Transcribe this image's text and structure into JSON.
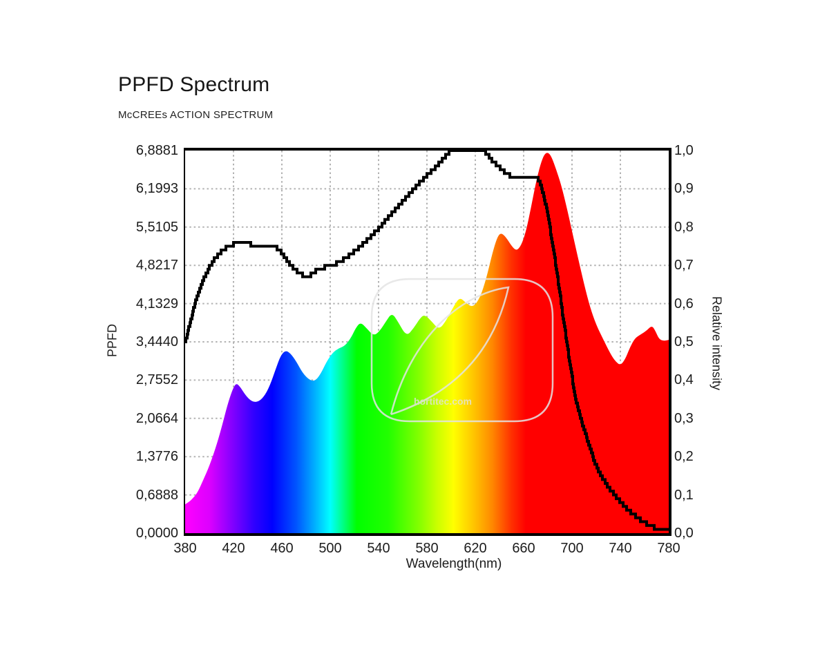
{
  "chart_data": {
    "type": "area",
    "title": "PPFD Spectrum",
    "subtitle": "McCREEs ACTION SPECTRUM",
    "xlabel": "Wavelength(nm)",
    "ylabel_left": "PPFD",
    "ylabel_right": "Relative intensity",
    "watermark": "hortitec.com",
    "grid": true,
    "x_range": [
      380,
      780
    ],
    "x_ticks": [
      380,
      420,
      460,
      500,
      540,
      580,
      620,
      660,
      700,
      740,
      780
    ],
    "x_tick_labels": [
      "380",
      "420",
      "460",
      "500",
      "540",
      "580",
      "620",
      "660",
      "700",
      "740",
      "780"
    ],
    "y_left_range": [
      0,
      6.8881
    ],
    "y_left_tick_labels": [
      "6,8881",
      "6,1993",
      "5,5105",
      "4,8217",
      "4,1329",
      "3,4440",
      "2,7552",
      "2,0664",
      "1,3776",
      "0,6888",
      "0,0000"
    ],
    "y_right_range": [
      0,
      1.0
    ],
    "y_right_tick_labels": [
      "1,0",
      "0,9",
      "0,8",
      "0,7",
      "0,6",
      "0,5",
      "0,4",
      "0,3",
      "0,2",
      "0,1",
      "0,0"
    ],
    "colors": {
      "line": "#000000",
      "grid": "#b2b2b2",
      "frame": "#000000",
      "watermark": "#e4e4e4"
    },
    "spectrum_gradient": [
      {
        "wavelength": 380,
        "color": "#ff00ff"
      },
      {
        "wavelength": 400,
        "color": "#dd00ff"
      },
      {
        "wavelength": 418,
        "color": "#8800ff"
      },
      {
        "wavelength": 437,
        "color": "#3000ff"
      },
      {
        "wavelength": 452,
        "color": "#0000ff"
      },
      {
        "wavelength": 472,
        "color": "#0055ff"
      },
      {
        "wavelength": 488,
        "color": "#00b4ff"
      },
      {
        "wavelength": 500,
        "color": "#00ffff"
      },
      {
        "wavelength": 522,
        "color": "#00ff00"
      },
      {
        "wavelength": 548,
        "color": "#22ff00"
      },
      {
        "wavelength": 572,
        "color": "#7dff00"
      },
      {
        "wavelength": 588,
        "color": "#c8ff00"
      },
      {
        "wavelength": 602,
        "color": "#ffff00"
      },
      {
        "wavelength": 620,
        "color": "#ffc000"
      },
      {
        "wavelength": 634,
        "color": "#ff8800"
      },
      {
        "wavelength": 650,
        "color": "#ff3000"
      },
      {
        "wavelength": 662,
        "color": "#ff0000"
      },
      {
        "wavelength": 780,
        "color": "#ff0000"
      }
    ],
    "series": [
      {
        "name": "PPFD spectrum",
        "render": "area",
        "axis": "left",
        "points": [
          [
            380,
            0.52
          ],
          [
            383,
            0.56
          ],
          [
            386,
            0.62
          ],
          [
            390,
            0.72
          ],
          [
            395,
            0.96
          ],
          [
            400,
            1.21
          ],
          [
            405,
            1.52
          ],
          [
            410,
            1.89
          ],
          [
            415,
            2.31
          ],
          [
            419,
            2.58
          ],
          [
            422,
            2.7
          ],
          [
            425,
            2.65
          ],
          [
            430,
            2.48
          ],
          [
            435,
            2.37
          ],
          [
            440,
            2.36
          ],
          [
            445,
            2.45
          ],
          [
            450,
            2.65
          ],
          [
            455,
            2.96
          ],
          [
            459,
            3.2
          ],
          [
            463,
            3.29
          ],
          [
            467,
            3.24
          ],
          [
            472,
            3.09
          ],
          [
            477,
            2.89
          ],
          [
            482,
            2.77
          ],
          [
            487,
            2.73
          ],
          [
            492,
            2.86
          ],
          [
            497,
            3.09
          ],
          [
            502,
            3.25
          ],
          [
            507,
            3.33
          ],
          [
            512,
            3.37
          ],
          [
            517,
            3.51
          ],
          [
            521,
            3.69
          ],
          [
            525,
            3.8
          ],
          [
            530,
            3.69
          ],
          [
            536,
            3.55
          ],
          [
            541,
            3.64
          ],
          [
            546,
            3.81
          ],
          [
            551,
            3.97
          ],
          [
            556,
            3.81
          ],
          [
            563,
            3.54
          ],
          [
            569,
            3.69
          ],
          [
            574,
            3.86
          ],
          [
            578,
            3.94
          ],
          [
            584,
            3.81
          ],
          [
            590,
            3.66
          ],
          [
            596,
            3.83
          ],
          [
            602,
            4.08
          ],
          [
            607,
            4.25
          ],
          [
            612,
            4.15
          ],
          [
            618,
            4.06
          ],
          [
            624,
            4.24
          ],
          [
            629,
            4.58
          ],
          [
            634,
            5.03
          ],
          [
            638,
            5.32
          ],
          [
            641,
            5.41
          ],
          [
            645,
            5.34
          ],
          [
            650,
            5.17
          ],
          [
            654,
            5.08
          ],
          [
            658,
            5.18
          ],
          [
            662,
            5.44
          ],
          [
            666,
            5.85
          ],
          [
            670,
            6.3
          ],
          [
            674,
            6.65
          ],
          [
            677,
            6.82
          ],
          [
            680,
            6.86
          ],
          [
            683,
            6.78
          ],
          [
            687,
            6.54
          ],
          [
            691,
            6.27
          ],
          [
            695,
            5.92
          ],
          [
            700,
            5.44
          ],
          [
            705,
            4.95
          ],
          [
            710,
            4.48
          ],
          [
            715,
            4.06
          ],
          [
            720,
            3.75
          ],
          [
            726,
            3.48
          ],
          [
            732,
            3.22
          ],
          [
            736,
            3.09
          ],
          [
            740,
            3.02
          ],
          [
            744,
            3.13
          ],
          [
            748,
            3.35
          ],
          [
            752,
            3.51
          ],
          [
            757,
            3.58
          ],
          [
            762,
            3.65
          ],
          [
            766,
            3.74
          ],
          [
            769,
            3.64
          ],
          [
            772,
            3.49
          ],
          [
            776,
            3.46
          ],
          [
            780,
            3.48
          ]
        ]
      },
      {
        "name": "McCrees action spectrum",
        "render": "step-line",
        "axis": "right",
        "points": [
          [
            380,
            0.5
          ],
          [
            384,
            0.55
          ],
          [
            388,
            0.6
          ],
          [
            392,
            0.64
          ],
          [
            396,
            0.67
          ],
          [
            400,
            0.695
          ],
          [
            404,
            0.715
          ],
          [
            408,
            0.73
          ],
          [
            412,
            0.742
          ],
          [
            416,
            0.75
          ],
          [
            420,
            0.755
          ],
          [
            425,
            0.757
          ],
          [
            433,
            0.757
          ],
          [
            437,
            0.75
          ],
          [
            455,
            0.748
          ],
          [
            459,
            0.735
          ],
          [
            463,
            0.718
          ],
          [
            467,
            0.7
          ],
          [
            471,
            0.688
          ],
          [
            475,
            0.678
          ],
          [
            479,
            0.672
          ],
          [
            484,
            0.675
          ],
          [
            488,
            0.685
          ],
          [
            492,
            0.692
          ],
          [
            497,
            0.697
          ],
          [
            503,
            0.702
          ],
          [
            508,
            0.71
          ],
          [
            513,
            0.72
          ],
          [
            517,
            0.73
          ],
          [
            523,
            0.745
          ],
          [
            529,
            0.762
          ],
          [
            535,
            0.78
          ],
          [
            541,
            0.8
          ],
          [
            547,
            0.822
          ],
          [
            553,
            0.843
          ],
          [
            559,
            0.864
          ],
          [
            565,
            0.885
          ],
          [
            571,
            0.906
          ],
          [
            577,
            0.926
          ],
          [
            583,
            0.945
          ],
          [
            589,
            0.963
          ],
          [
            594,
            0.98
          ],
          [
            598,
            0.995
          ],
          [
            601,
            1.0
          ],
          [
            627,
            1.0
          ],
          [
            630,
            0.99
          ],
          [
            633,
            0.977
          ],
          [
            637,
            0.965
          ],
          [
            641,
            0.952
          ],
          [
            645,
            0.941
          ],
          [
            649,
            0.933
          ],
          [
            653,
            0.928
          ],
          [
            671,
            0.928
          ],
          [
            674,
            0.91
          ],
          [
            677,
            0.875
          ],
          [
            680,
            0.83
          ],
          [
            683,
            0.77
          ],
          [
            686,
            0.71
          ],
          [
            689,
            0.645
          ],
          [
            692,
            0.575
          ],
          [
            695,
            0.51
          ],
          [
            698,
            0.445
          ],
          [
            701,
            0.385
          ],
          [
            704,
            0.335
          ],
          [
            708,
            0.29
          ],
          [
            712,
            0.25
          ],
          [
            716,
            0.21
          ],
          [
            720,
            0.175
          ],
          [
            725,
            0.145
          ],
          [
            730,
            0.12
          ],
          [
            735,
            0.1
          ],
          [
            740,
            0.082
          ],
          [
            745,
            0.065
          ],
          [
            750,
            0.05
          ],
          [
            755,
            0.038
          ],
          [
            760,
            0.028
          ],
          [
            765,
            0.018
          ],
          [
            770,
            0.012
          ],
          [
            775,
            0.008
          ],
          [
            780,
            0.007
          ]
        ]
      }
    ]
  }
}
